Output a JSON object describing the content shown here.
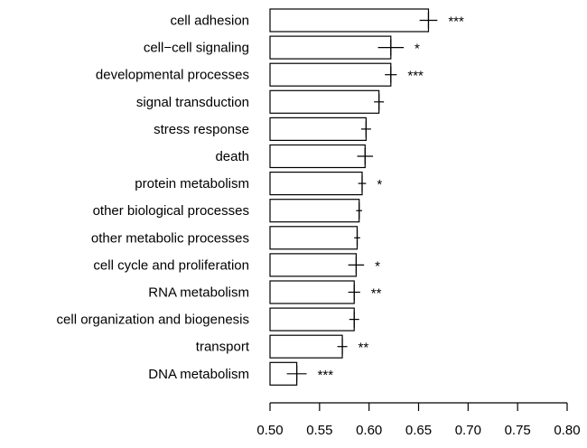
{
  "chart_data": {
    "type": "bar",
    "orientation": "horizontal",
    "title": "",
    "xlabel": "",
    "ylabel": "",
    "xlim": [
      0.5,
      0.8
    ],
    "xticks": [
      "0.50",
      "0.55",
      "0.60",
      "0.65",
      "0.70",
      "0.75",
      "0.80"
    ],
    "grid": false,
    "bar_fill": "#ffffff",
    "bar_stroke": "#000000",
    "categories": [
      "cell adhesion",
      "cell−cell signaling",
      "developmental processes",
      "signal transduction",
      "stress response",
      "death",
      "protein metabolism",
      "other biological processes",
      "other metabolic processes",
      "cell cycle and proliferation",
      "RNA metabolism",
      "cell organization and biogenesis",
      "transport",
      "DNA metabolism"
    ],
    "values": [
      0.66,
      0.622,
      0.622,
      0.61,
      0.597,
      0.596,
      0.593,
      0.59,
      0.588,
      0.587,
      0.585,
      0.585,
      0.573,
      0.527
    ],
    "error": [
      0.009,
      0.013,
      0.006,
      0.005,
      0.005,
      0.008,
      0.004,
      0.003,
      0.003,
      0.008,
      0.006,
      0.005,
      0.005,
      0.01
    ],
    "significance": [
      "***",
      "*",
      "***",
      "",
      "",
      "",
      "*",
      "",
      "",
      "*",
      "**",
      "",
      "**",
      "***"
    ]
  }
}
